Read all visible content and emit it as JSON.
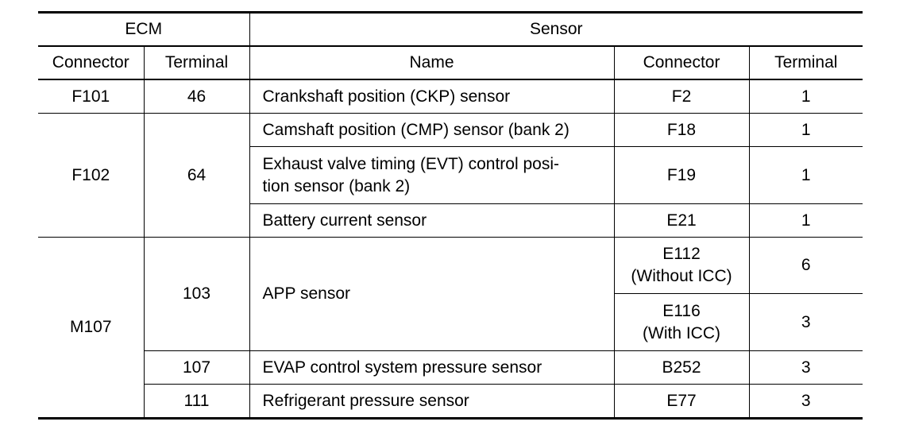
{
  "header": {
    "ecm": "ECM",
    "sensor": "Sensor",
    "ecm_connector": "Connector",
    "ecm_terminal": "Terminal",
    "name": "Name",
    "sensor_connector": "Connector",
    "sensor_terminal": "Terminal"
  },
  "rows": {
    "r1": {
      "ecm_connector": "F101",
      "ecm_terminal": "46",
      "name": "Crankshaft position (CKP) sensor",
      "sensor_connector": "F2",
      "sensor_terminal": "1"
    },
    "r2": {
      "ecm_connector": "F102",
      "ecm_terminal": "64",
      "name": "Camshaft position (CMP) sensor (bank 2)",
      "sensor_connector": "F18",
      "sensor_terminal": "1"
    },
    "r3": {
      "name_line1": "Exhaust valve timing (EVT) control posi-",
      "name_line2": "tion sensor (bank 2)",
      "sensor_connector": "F19",
      "sensor_terminal": "1"
    },
    "r4": {
      "name": "Battery current sensor",
      "sensor_connector": "E21",
      "sensor_terminal": "1"
    },
    "r5": {
      "ecm_connector": "M107",
      "ecm_terminal": "103",
      "name": "APP sensor",
      "sensor_connector_line1": "E112",
      "sensor_connector_line2": "(Without ICC)",
      "sensor_terminal": "6"
    },
    "r6": {
      "sensor_connector_line1": "E116",
      "sensor_connector_line2": "(With ICC)",
      "sensor_terminal": "3"
    },
    "r7": {
      "ecm_terminal": "107",
      "name": "EVAP control system pressure sensor",
      "sensor_connector": "B252",
      "sensor_terminal": "3"
    },
    "r8": {
      "ecm_terminal": "111",
      "name": "Refrigerant pressure sensor",
      "sensor_connector": "E77",
      "sensor_terminal": "3"
    }
  }
}
